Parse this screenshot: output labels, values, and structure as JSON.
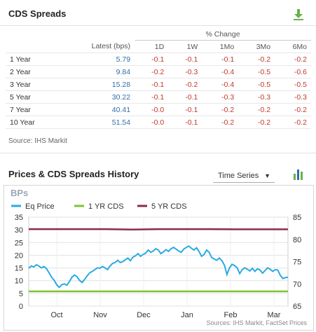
{
  "cds": {
    "title": "CDS Spreads",
    "pct_change_header": "% Change",
    "columns": [
      "Latest (bps)",
      "1D",
      "1W",
      "1Mo",
      "3Mo",
      "6Mo"
    ],
    "rows": [
      {
        "term": "1 Year",
        "latest": "5.79",
        "d1": "-0.1",
        "w1": "-0.1",
        "mo1": "-0.1",
        "mo3": "-0.2",
        "mo6": "-0.2"
      },
      {
        "term": "2 Year",
        "latest": "9.84",
        "d1": "-0.2",
        "w1": "-0.3",
        "mo1": "-0.4",
        "mo3": "-0.5",
        "mo6": "-0.6"
      },
      {
        "term": "3 Year",
        "latest": "15.28",
        "d1": "-0.1",
        "w1": "-0.2",
        "mo1": "-0.4",
        "mo3": "-0.5",
        "mo6": "-0.5"
      },
      {
        "term": "5 Year",
        "latest": "30.22",
        "d1": "-0.1",
        "w1": "-0.1",
        "mo1": "-0.3",
        "mo3": "-0.3",
        "mo6": "-0.3"
      },
      {
        "term": "7 Year",
        "latest": "40.41",
        "d1": "-0.0",
        "w1": "-0.1",
        "mo1": "-0.2",
        "mo3": "-0.2",
        "mo6": "-0.2"
      },
      {
        "term": "10 Year",
        "latest": "51.54",
        "d1": "-0.0",
        "w1": "-0.1",
        "mo1": "-0.2",
        "mo3": "-0.2",
        "mo6": "-0.2"
      }
    ],
    "source": "Source: IHS Markit"
  },
  "history": {
    "title": "Prices & CDS Spreads History",
    "view_select": "Time Series"
  },
  "colors": {
    "accent_blue": "#2f6ea8",
    "negative_red": "#c0392b",
    "eq_price": "#29aae2",
    "cds_1yr": "#7dc42e",
    "cds_5yr": "#8e2a4f",
    "download_icon": "#6ab04c",
    "chart_icon": "#6ab04c"
  },
  "icons": {
    "download": "download-icon",
    "chart": "bar-chart-icon",
    "select_caret": "caret-down-icon"
  },
  "chart_data": {
    "type": "line",
    "title": "BPs",
    "source": "Sources: IHS Markit, FactSet Prices",
    "x_tick_labels": [
      "Oct",
      "Nov",
      "Dec",
      "Jan",
      "Feb",
      "Mar"
    ],
    "left_axis": {
      "ticks": [
        "0",
        "5",
        "10",
        "15",
        "20",
        "25",
        "30",
        "35"
      ],
      "ylim": [
        0,
        35
      ]
    },
    "right_axis": {
      "ticks": [
        "65",
        "70",
        "75",
        "80",
        "85"
      ],
      "ylim": [
        65,
        85
      ]
    },
    "legend_position": "top-left",
    "grid": true,
    "series": [
      {
        "name": "Eq Price",
        "axis": "right",
        "color": "#29aae2",
        "values": [
          73.5,
          74,
          73.8,
          74.3,
          74,
          73.6,
          73.9,
          73.4,
          72.5,
          71.5,
          70.8,
          69.8,
          69.2,
          69.8,
          70,
          69.7,
          70.5,
          71.5,
          72,
          71.6,
          70.8,
          70.3,
          71,
          71.8,
          72.5,
          72.8,
          73.2,
          73.6,
          73.5,
          73.9,
          73.6,
          73.2,
          74,
          74.6,
          74.8,
          75.3,
          74.8,
          75,
          75.4,
          75.8,
          75.2,
          76,
          76.3,
          76.8,
          76.2,
          76.6,
          76.9,
          77.6,
          77.1,
          77.4,
          77.9,
          77.6,
          76.8,
          77.2,
          77.7,
          77.3,
          77.9,
          78.2,
          77.8,
          77.4,
          77.1,
          77.8,
          78.2,
          78.5,
          78,
          77.6,
          78.1,
          77.3,
          76.2,
          76.6,
          77.6,
          77.1,
          75.9,
          75.6,
          75.3,
          75.8,
          75.2,
          74.2,
          72.1,
          73.6,
          74.4,
          74.1,
          73.6,
          72.3,
          73.2,
          73.6,
          73.3,
          72.9,
          73.5,
          72.8,
          73.4,
          73.1,
          72.4,
          73,
          73.6,
          73.3,
          72.8,
          73.2,
          73.1,
          71.9,
          71.2,
          71.4,
          71.5
        ]
      },
      {
        "name": "1 YR CDS",
        "axis": "left",
        "color": "#7dc42e",
        "values": [
          5.8,
          5.8
        ]
      },
      {
        "name": "5 YR CDS",
        "axis": "left",
        "color": "#8e2a4f",
        "values": [
          30.3,
          30.3,
          30.3,
          30.3,
          30.1,
          30.3,
          30.3,
          30.3,
          30.2,
          30.2,
          30.2
        ]
      }
    ]
  }
}
